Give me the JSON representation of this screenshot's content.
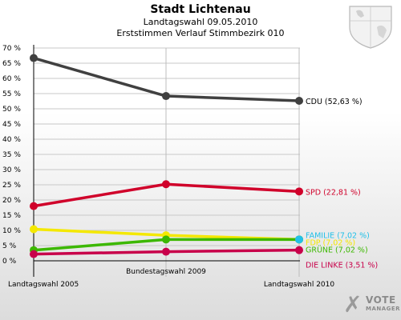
{
  "header": {
    "title": "Stadt Lichtenau",
    "subtitle_1": "Landtagswahl 09.05.2010",
    "subtitle_2": "Erststimmen Verlauf Stimmbezirk 010"
  },
  "logo": {
    "line1": "VOTE",
    "line2": "MANAGER"
  },
  "chart_data": {
    "type": "line",
    "title": "Stadt Lichtenau",
    "categories": [
      "Landtagswahl 2005",
      "Bundestagswahl 2009",
      "Landtagswahl 2010"
    ],
    "y_ticks": [
      "0 %",
      "5 %",
      "10 %",
      "15 %",
      "20 %",
      "25 %",
      "30 %",
      "35 %",
      "40 %",
      "45 %",
      "50 %",
      "55 %",
      "60 %",
      "65 %",
      "70 %"
    ],
    "ylim": [
      0,
      70
    ],
    "grid": true,
    "series": [
      {
        "name": "CDU",
        "label": "CDU (52,63 %)",
        "color": "#404040",
        "values": [
          66.7,
          54.2,
          52.63
        ]
      },
      {
        "name": "SPD",
        "label": "SPD (22,81 %)",
        "color": "#d0002a",
        "values": [
          18.0,
          25.2,
          22.81
        ]
      },
      {
        "name": "FDP",
        "label": "FDP (7,02 %)",
        "color": "#f4e800",
        "values": [
          10.4,
          8.4,
          7.02
        ]
      },
      {
        "name": "GRÜNE",
        "label": "GRÜNE (7,02 %)",
        "color": "#3cb800",
        "values": [
          3.5,
          7.0,
          7.02
        ]
      },
      {
        "name": "DIE LINKE",
        "label": "DIE LINKE (3,51 %)",
        "color": "#c8004a",
        "values": [
          2.2,
          3.0,
          3.51
        ]
      },
      {
        "name": "FAMILIE",
        "label": "FAMILIE (7,02 %)",
        "color": "#22c0e8",
        "values": [
          null,
          null,
          7.02
        ]
      }
    ]
  }
}
